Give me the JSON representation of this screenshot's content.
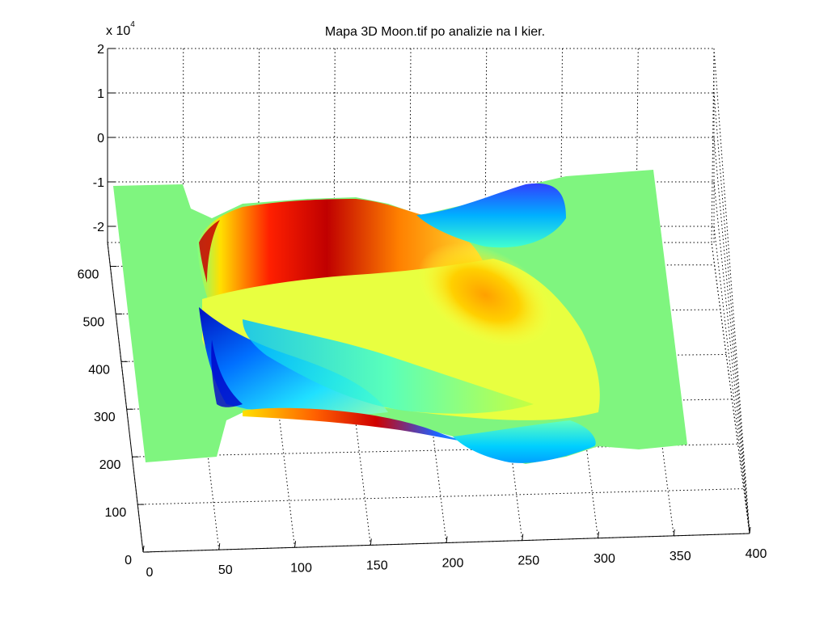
{
  "chart_data": {
    "type": "surface",
    "title": "Mapa 3D Moon.tif po analizie na I kier.",
    "x_axis": {
      "label": "",
      "ticks": [
        0,
        50,
        100,
        150,
        200,
        250,
        300,
        350,
        400
      ],
      "range": [
        0,
        400
      ]
    },
    "y_axis": {
      "label": "",
      "ticks": [
        0,
        100,
        200,
        300,
        400,
        500,
        600
      ],
      "range": [
        0,
        650
      ]
    },
    "z_axis": {
      "label": "",
      "tick_labels": [
        "-2",
        "-1",
        "0",
        "1",
        "2"
      ],
      "ticks": [
        -2,
        -1,
        0,
        1,
        2
      ],
      "multiplier_base": "x 10",
      "multiplier_exponent": "4"
    },
    "grid": true,
    "colormap": "jet",
    "surface": {
      "flat_region_color": "#7ff57f",
      "x_extent": [
        0,
        340
      ],
      "y_extent": [
        200,
        580
      ],
      "features": [
        {
          "name": "left edge ridge",
          "x": 45,
          "value": "high",
          "color": "#d40000"
        },
        {
          "name": "left interior trough",
          "x": 70,
          "value": "low",
          "color": "#0000d0"
        },
        {
          "name": "central bright region",
          "x": 250,
          "value": "high",
          "color": "#ffa000"
        }
      ]
    }
  }
}
